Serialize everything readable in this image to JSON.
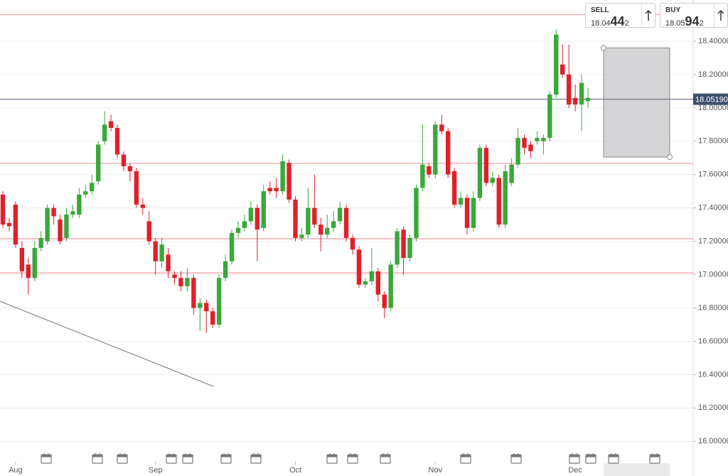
{
  "chart_data": {
    "type": "candlestick",
    "categories": [
      null,
      null,
      "Aug",
      null,
      null,
      null,
      null,
      null,
      null,
      null,
      null,
      null,
      null,
      null,
      null,
      null,
      null,
      null,
      null,
      null,
      null,
      null,
      null,
      null,
      "Sep",
      null,
      null,
      null,
      null,
      null,
      null,
      null,
      null,
      null,
      null,
      null,
      null,
      null,
      null,
      null,
      null,
      null,
      null,
      null,
      null,
      null,
      "Oct",
      null,
      null,
      null,
      null,
      null,
      null,
      null,
      null,
      null,
      null,
      null,
      null,
      null,
      null,
      null,
      null,
      null,
      null,
      null,
      null,
      null,
      "Nov",
      null,
      null,
      null,
      null,
      null,
      null,
      null,
      null,
      null,
      null,
      null,
      null,
      null,
      null,
      null,
      null,
      null,
      null,
      null,
      null,
      null,
      "Dec",
      null,
      null
    ],
    "open": [
      17.48,
      17.31,
      17.42,
      17.16,
      17.06,
      16.98,
      17.16,
      17.2,
      17.4,
      17.33,
      17.22,
      17.36,
      17.36,
      17.48,
      17.5,
      17.56,
      17.8,
      17.92,
      17.88,
      17.72,
      17.65,
      17.62,
      17.42,
      17.32,
      17.2,
      17.08,
      17.12,
      17.0,
      16.98,
      16.93,
      16.98,
      16.8,
      16.83,
      16.78,
      16.7,
      16.98,
      17.08,
      17.25,
      17.28,
      17.32,
      17.4,
      17.28,
      17.52,
      17.52,
      17.5,
      17.67,
      17.45,
      17.22,
      17.24,
      17.4,
      17.3,
      17.24,
      17.28,
      17.32,
      17.4,
      17.22,
      17.15,
      16.94,
      16.96,
      17.02,
      16.88,
      16.8,
      17.06,
      17.27,
      17.1,
      17.22,
      17.52,
      17.65,
      17.6,
      17.9,
      17.86,
      17.62,
      17.42,
      17.46,
      17.28,
      17.46,
      17.76,
      17.55,
      17.58,
      17.3,
      17.55,
      17.66,
      17.82,
      17.78,
      17.8,
      17.8,
      17.82,
      18.08,
      18.26,
      18.2,
      18.06,
      18.02,
      18.04
    ],
    "high": [
      17.5,
      17.34,
      17.44,
      17.2,
      17.1,
      17.2,
      17.26,
      17.42,
      17.42,
      17.36,
      17.4,
      17.42,
      17.52,
      17.54,
      17.6,
      17.8,
      17.98,
      17.96,
      17.9,
      17.74,
      17.67,
      17.64,
      17.46,
      17.38,
      17.22,
      17.22,
      17.16,
      17.02,
      17.02,
      17.04,
      17.0,
      16.86,
      16.85,
      16.8,
      17.0,
      17.12,
      17.27,
      17.32,
      17.36,
      17.44,
      17.42,
      17.54,
      17.56,
      17.58,
      17.72,
      17.69,
      17.47,
      17.28,
      17.52,
      17.6,
      17.34,
      17.36,
      17.38,
      17.44,
      17.42,
      17.24,
      17.17,
      16.98,
      17.16,
      17.04,
      16.9,
      17.08,
      17.28,
      17.29,
      17.24,
      17.54,
      17.9,
      17.67,
      17.92,
      17.96,
      17.88,
      17.64,
      17.5,
      17.48,
      17.5,
      17.78,
      17.78,
      17.62,
      17.6,
      17.66,
      17.7,
      17.88,
      17.84,
      17.8,
      17.86,
      17.84,
      18.1,
      18.47,
      18.38,
      18.38,
      18.14,
      18.2,
      18.12
    ],
    "low": [
      17.28,
      17.26,
      17.16,
      16.98,
      16.88,
      16.96,
      17.14,
      17.18,
      17.3,
      17.18,
      17.2,
      17.34,
      17.34,
      17.46,
      17.48,
      17.54,
      17.78,
      17.86,
      17.7,
      17.62,
      17.56,
      17.4,
      17.36,
      17.18,
      17.0,
      17.04,
      16.98,
      16.94,
      16.9,
      16.9,
      16.76,
      16.66,
      16.65,
      16.68,
      16.68,
      16.96,
      17.06,
      17.22,
      17.26,
      17.3,
      17.08,
      17.26,
      17.48,
      17.46,
      17.48,
      17.43,
      17.2,
      17.2,
      17.22,
      17.28,
      17.14,
      17.22,
      17.26,
      17.3,
      17.2,
      17.12,
      16.92,
      16.92,
      16.94,
      16.84,
      16.74,
      16.78,
      17.04,
      17.0,
      17.08,
      17.2,
      17.5,
      17.58,
      17.58,
      17.84,
      17.58,
      17.4,
      17.4,
      17.24,
      17.26,
      17.44,
      17.53,
      17.53,
      17.28,
      17.28,
      17.53,
      17.64,
      17.72,
      17.7,
      17.78,
      17.72,
      17.8,
      18.06,
      18.18,
      18.0,
      17.98,
      17.86,
      18.0
    ],
    "close": [
      17.3,
      17.29,
      17.18,
      17.02,
      16.98,
      17.16,
      17.22,
      17.4,
      17.35,
      17.2,
      17.36,
      17.38,
      17.48,
      17.5,
      17.55,
      17.78,
      17.9,
      17.88,
      17.72,
      17.65,
      17.62,
      17.42,
      17.4,
      17.2,
      17.08,
      17.18,
      17.02,
      16.98,
      16.93,
      16.98,
      16.8,
      16.83,
      16.78,
      16.7,
      16.98,
      17.08,
      17.25,
      17.28,
      17.32,
      17.4,
      17.27,
      17.5,
      17.5,
      17.5,
      17.68,
      17.45,
      17.22,
      17.24,
      17.4,
      17.3,
      17.24,
      17.28,
      17.32,
      17.4,
      17.22,
      17.15,
      16.94,
      16.96,
      17.02,
      16.88,
      16.8,
      17.06,
      17.26,
      17.1,
      17.22,
      17.52,
      17.66,
      17.6,
      17.9,
      17.86,
      17.6,
      17.42,
      17.46,
      17.28,
      17.46,
      17.76,
      17.55,
      17.58,
      17.3,
      17.62,
      17.66,
      17.82,
      17.76,
      17.74,
      17.82,
      17.82,
      18.08,
      18.44,
      18.2,
      18.02,
      18.02,
      18.15,
      18.06
    ],
    "up_color": "#3aa83a",
    "down_color": "#e0202a",
    "ylim": [
      15.92,
      18.647
    ],
    "yticks": [
      {
        "value": 16.0,
        "label": "16.00000"
      },
      {
        "value": 16.2,
        "label": "16.20000"
      },
      {
        "value": 16.4,
        "label": "16.40000"
      },
      {
        "value": 16.6,
        "label": "16.60000"
      },
      {
        "value": 16.8,
        "label": "16.80000"
      },
      {
        "value": 17.0,
        "label": "17.00000"
      },
      {
        "value": 17.2,
        "label": "17.20000"
      },
      {
        "value": 17.4,
        "label": "17.40000"
      },
      {
        "value": 17.6,
        "label": "17.60000"
      },
      {
        "value": 17.8,
        "label": "17.80000"
      },
      {
        "value": 18.0,
        "label": "18.00000"
      },
      {
        "value": 18.2,
        "label": "18.20000"
      },
      {
        "value": 18.4,
        "label": "18.40000"
      }
    ],
    "grid": true,
    "levels": [
      18.56,
      17.667,
      17.215,
      17.01
    ],
    "level_color": "#f2a3aa",
    "current_price": {
      "value": 18.0519,
      "label": "18.05190"
    },
    "trend_line": [
      16.84,
      16.33
    ],
    "box": [
      18.36,
      17.705
    ]
  },
  "trade_panel": {
    "sell": {
      "label": "SELL",
      "price_head": "18.04",
      "price_big": "44",
      "price_tail": "2"
    },
    "buy": {
      "label": "BUY",
      "price_head": "18.05",
      "price_big": "94",
      "price_tail": "2"
    }
  }
}
